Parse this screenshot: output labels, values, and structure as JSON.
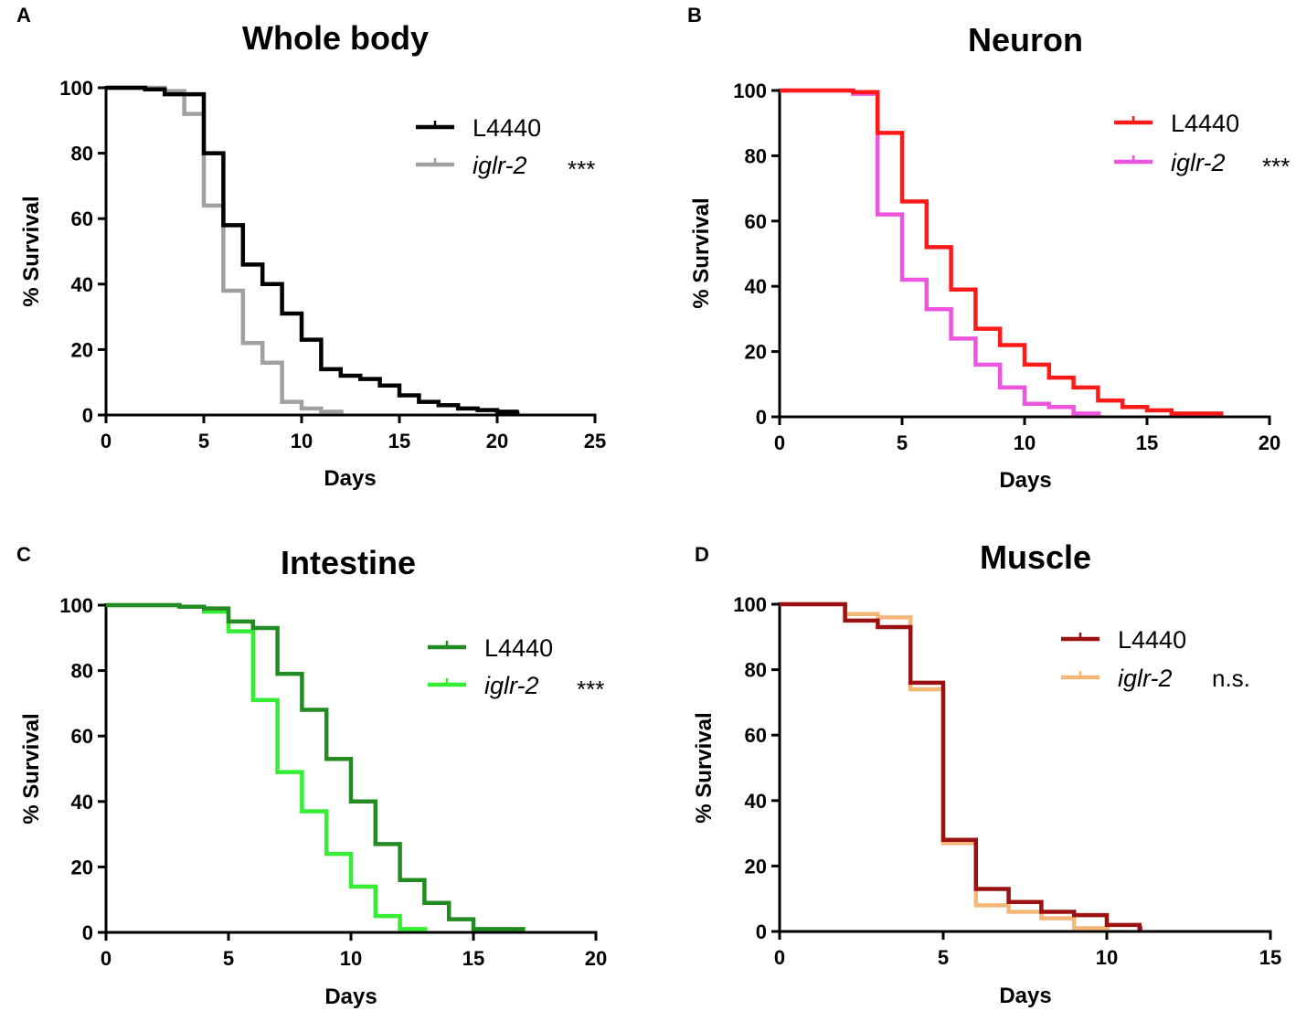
{
  "figure": {
    "panels": [
      "A",
      "B",
      "C",
      "D"
    ]
  },
  "chart_data": [
    {
      "type": "line",
      "panel_label": "A",
      "title": "Whole body",
      "xlabel": "Days",
      "ylabel": "% Survival",
      "xlim": [
        0,
        25
      ],
      "ylim": [
        0,
        100
      ],
      "xticks": [
        "0",
        "5",
        "10",
        "15",
        "20",
        "25"
      ],
      "yticks": [
        "0",
        "20",
        "40",
        "60",
        "80",
        "100"
      ],
      "significance": "***",
      "series": [
        {
          "name": "L4440",
          "color": "#000000",
          "x": [
            0,
            2,
            3,
            5,
            6,
            7,
            8,
            9,
            10,
            11,
            12,
            13,
            14,
            15,
            16,
            17,
            18,
            19,
            20,
            21
          ],
          "y": [
            100,
            99.5,
            98,
            80,
            58,
            46,
            40,
            31,
            23,
            14,
            12,
            11,
            9,
            6,
            4,
            3,
            2,
            1.5,
            1,
            0.5
          ]
        },
        {
          "name": "iglr-2",
          "color": "#a0a0a0",
          "x": [
            0,
            3,
            4,
            5,
            6,
            7,
            8,
            9,
            10,
            11,
            12
          ],
          "y": [
            100,
            99,
            92,
            64,
            38,
            22,
            16,
            4,
            2,
            1,
            1
          ]
        }
      ]
    },
    {
      "type": "line",
      "panel_label": "B",
      "title": "Neuron",
      "xlabel": "Days",
      "ylabel": "% Survival",
      "xlim": [
        0,
        20
      ],
      "ylim": [
        0,
        100
      ],
      "xticks": [
        "0",
        "5",
        "10",
        "15",
        "20"
      ],
      "yticks": [
        "0",
        "20",
        "40",
        "60",
        "80",
        "100"
      ],
      "significance": "***",
      "series": [
        {
          "name": "L4440",
          "color": "#ff1a1a",
          "x": [
            0,
            3,
            4,
            5,
            6,
            7,
            8,
            9,
            10,
            11,
            12,
            13,
            14,
            15,
            16,
            17,
            18
          ],
          "y": [
            100,
            99.5,
            87,
            66,
            52,
            39,
            27,
            22,
            16,
            12,
            9,
            5,
            3,
            2,
            1,
            1,
            1
          ]
        },
        {
          "name": "iglr-2",
          "color": "#ee55dd",
          "x": [
            0,
            3,
            4,
            5,
            6,
            7,
            8,
            9,
            10,
            11,
            12,
            13
          ],
          "y": [
            100,
            99,
            62,
            42,
            33,
            24,
            16,
            9,
            4,
            3,
            1,
            1
          ]
        }
      ]
    },
    {
      "type": "line",
      "panel_label": "C",
      "title": "Intestine",
      "xlabel": "Days",
      "ylabel": "% Survival",
      "xlim": [
        0,
        20
      ],
      "ylim": [
        0,
        100
      ],
      "xticks": [
        "0",
        "5",
        "10",
        "15",
        "20"
      ],
      "yticks": [
        "0",
        "20",
        "40",
        "60",
        "80",
        "100"
      ],
      "significance": "***",
      "series": [
        {
          "name": "L4440",
          "color": "#228b22",
          "x": [
            0,
            3,
            4,
            5,
            6,
            7,
            8,
            9,
            10,
            11,
            12,
            13,
            14,
            15,
            17
          ],
          "y": [
            100,
            99.5,
            99,
            95,
            93,
            79,
            68,
            53,
            40,
            27,
            16,
            9,
            4,
            1,
            1
          ]
        },
        {
          "name": "iglr-2",
          "color": "#33ee33",
          "x": [
            0,
            3,
            4,
            5,
            6,
            7,
            8,
            9,
            10,
            11,
            12,
            13
          ],
          "y": [
            100,
            99.5,
            98,
            92,
            71,
            49,
            37,
            24,
            14,
            5,
            1,
            1
          ]
        }
      ]
    },
    {
      "type": "line",
      "panel_label": "D",
      "title": "Muscle",
      "xlabel": "Days",
      "ylabel": "% Survival",
      "xlim": [
        0,
        15
      ],
      "ylim": [
        0,
        100
      ],
      "xticks": [
        "0",
        "5",
        "10",
        "15"
      ],
      "yticks": [
        "0",
        "20",
        "40",
        "60",
        "80",
        "100"
      ],
      "significance": "n.s.",
      "series": [
        {
          "name": "L4440",
          "color": "#9b1010",
          "x": [
            0,
            2,
            3,
            4,
            5,
            6,
            7,
            8,
            9,
            10,
            11
          ],
          "y": [
            100,
            95,
            93,
            76,
            28,
            13,
            9,
            6,
            5,
            2,
            1
          ]
        },
        {
          "name": "iglr-2",
          "color": "#f3b878",
          "x": [
            0,
            2,
            3,
            4,
            5,
            6,
            7,
            8,
            9,
            10
          ],
          "y": [
            100,
            97,
            96,
            74,
            27,
            8,
            6,
            4,
            1,
            1
          ]
        }
      ]
    }
  ]
}
